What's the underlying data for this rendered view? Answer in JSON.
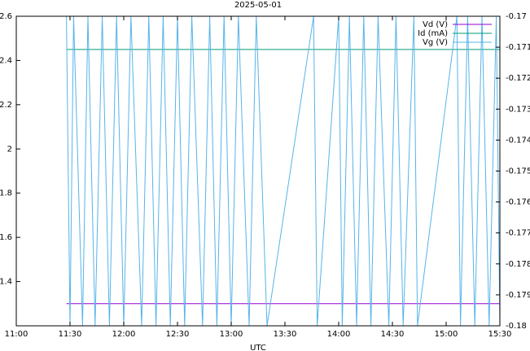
{
  "chart_data": {
    "type": "line",
    "title": "2025-05-01",
    "xlabel": "UTC",
    "xlim": [
      "11:00",
      "15:30"
    ],
    "xticks": [
      "11:00",
      "11:30",
      "12:00",
      "12:30",
      "13:00",
      "13:30",
      "14:00",
      "14:30",
      "15:00",
      "15:30"
    ],
    "ylim": [
      1.2,
      2.6
    ],
    "yticks": [
      1.4,
      1.6,
      1.8,
      2,
      2.2,
      2.4,
      2.6
    ],
    "y2lim": [
      -0.18,
      -0.17
    ],
    "y2ticks": [
      -0.17,
      -0.171,
      -0.172,
      -0.173,
      -0.174,
      -0.175,
      -0.176,
      -0.177,
      -0.178,
      -0.179,
      -0.18
    ],
    "grid": false,
    "legend": "top-right",
    "series": [
      {
        "name": "Vd (V)",
        "color": "#9400d3",
        "x": [
          "11:28",
          "15:30"
        ],
        "values": [
          1.3,
          1.3
        ]
      },
      {
        "name": "Id (mA)",
        "color": "#009e73",
        "x": [
          "11:28",
          "15:30"
        ],
        "values": [
          2.45,
          2.45
        ]
      },
      {
        "name": "Vg (V)",
        "color": "#56b4e9",
        "axis": "y2",
        "x": [
          "11:28",
          "11:30",
          "11:32",
          "11:37",
          "11:40",
          "11:44",
          "11:48",
          "11:52",
          "11:56",
          "12:00",
          "12:04",
          "12:10",
          "12:14",
          "12:18",
          "12:22",
          "12:26",
          "12:30",
          "12:34",
          "12:38",
          "12:44",
          "12:48",
          "12:52",
          "12:56",
          "13:00",
          "13:04",
          "13:10",
          "13:14",
          "13:20",
          "13:46",
          "13:48",
          "14:00",
          "14:02",
          "14:06",
          "14:10",
          "14:14",
          "14:18",
          "14:22",
          "14:28",
          "14:32",
          "14:36",
          "14:42",
          "14:44",
          "15:06",
          "15:08",
          "15:12",
          "15:16",
          "15:20",
          "15:24",
          "15:28",
          "15:30"
        ],
        "values": [
          -0.17,
          -0.18,
          -0.17,
          -0.18,
          -0.17,
          -0.18,
          -0.17,
          -0.18,
          -0.17,
          -0.18,
          -0.17,
          -0.18,
          -0.17,
          -0.18,
          -0.17,
          -0.18,
          -0.17,
          -0.18,
          -0.17,
          -0.18,
          -0.17,
          -0.18,
          -0.17,
          -0.18,
          -0.17,
          -0.18,
          -0.17,
          -0.18,
          -0.17,
          -0.18,
          -0.17,
          -0.18,
          -0.17,
          -0.18,
          -0.17,
          -0.18,
          -0.17,
          -0.18,
          -0.17,
          -0.18,
          -0.17,
          -0.18,
          -0.17,
          -0.18,
          -0.17,
          -0.18,
          -0.17,
          -0.18,
          -0.17,
          -0.18
        ]
      }
    ]
  }
}
